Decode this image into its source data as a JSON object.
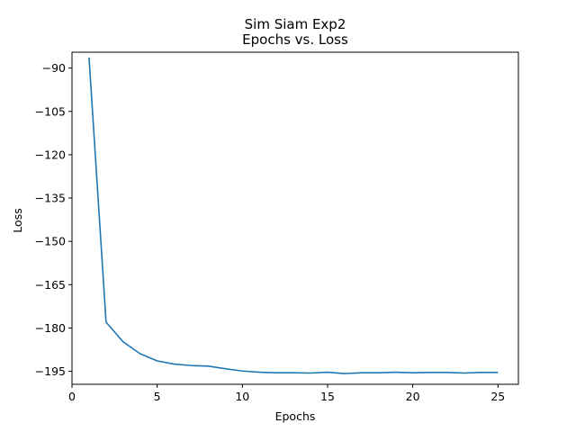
{
  "chart_data": {
    "type": "line",
    "title": "Sim Siam Exp2",
    "subtitle": "Epochs vs. Loss",
    "xlabel": "Epochs",
    "ylabel": "Loss",
    "xlim": [
      0,
      26.2
    ],
    "ylim": [
      -199.5,
      -84.5
    ],
    "xticks": [
      0,
      5,
      10,
      15,
      20,
      25
    ],
    "yticks": [
      -90,
      -105,
      -120,
      -135,
      -150,
      -165,
      -180,
      -195
    ],
    "ytick_labels": [
      "−90",
      "−105",
      "−120",
      "−135",
      "−150",
      "−165",
      "−180",
      "−195"
    ],
    "grid": false,
    "series": [
      {
        "color": "#1f77b4",
        "x": [
          1,
          2,
          3,
          4,
          5,
          6,
          7,
          8,
          9,
          10,
          11,
          12,
          13,
          14,
          15,
          16,
          17,
          18,
          19,
          20,
          21,
          22,
          23,
          24,
          25
        ],
        "y": [
          -86.3,
          -178.0,
          -184.8,
          -188.9,
          -191.4,
          -192.5,
          -193.0,
          -193.2,
          -194.1,
          -194.9,
          -195.3,
          -195.5,
          -195.5,
          -195.6,
          -195.3,
          -195.8,
          -195.5,
          -195.5,
          -195.3,
          -195.5,
          -195.4,
          -195.4,
          -195.6,
          -195.4,
          -195.4
        ]
      }
    ]
  }
}
